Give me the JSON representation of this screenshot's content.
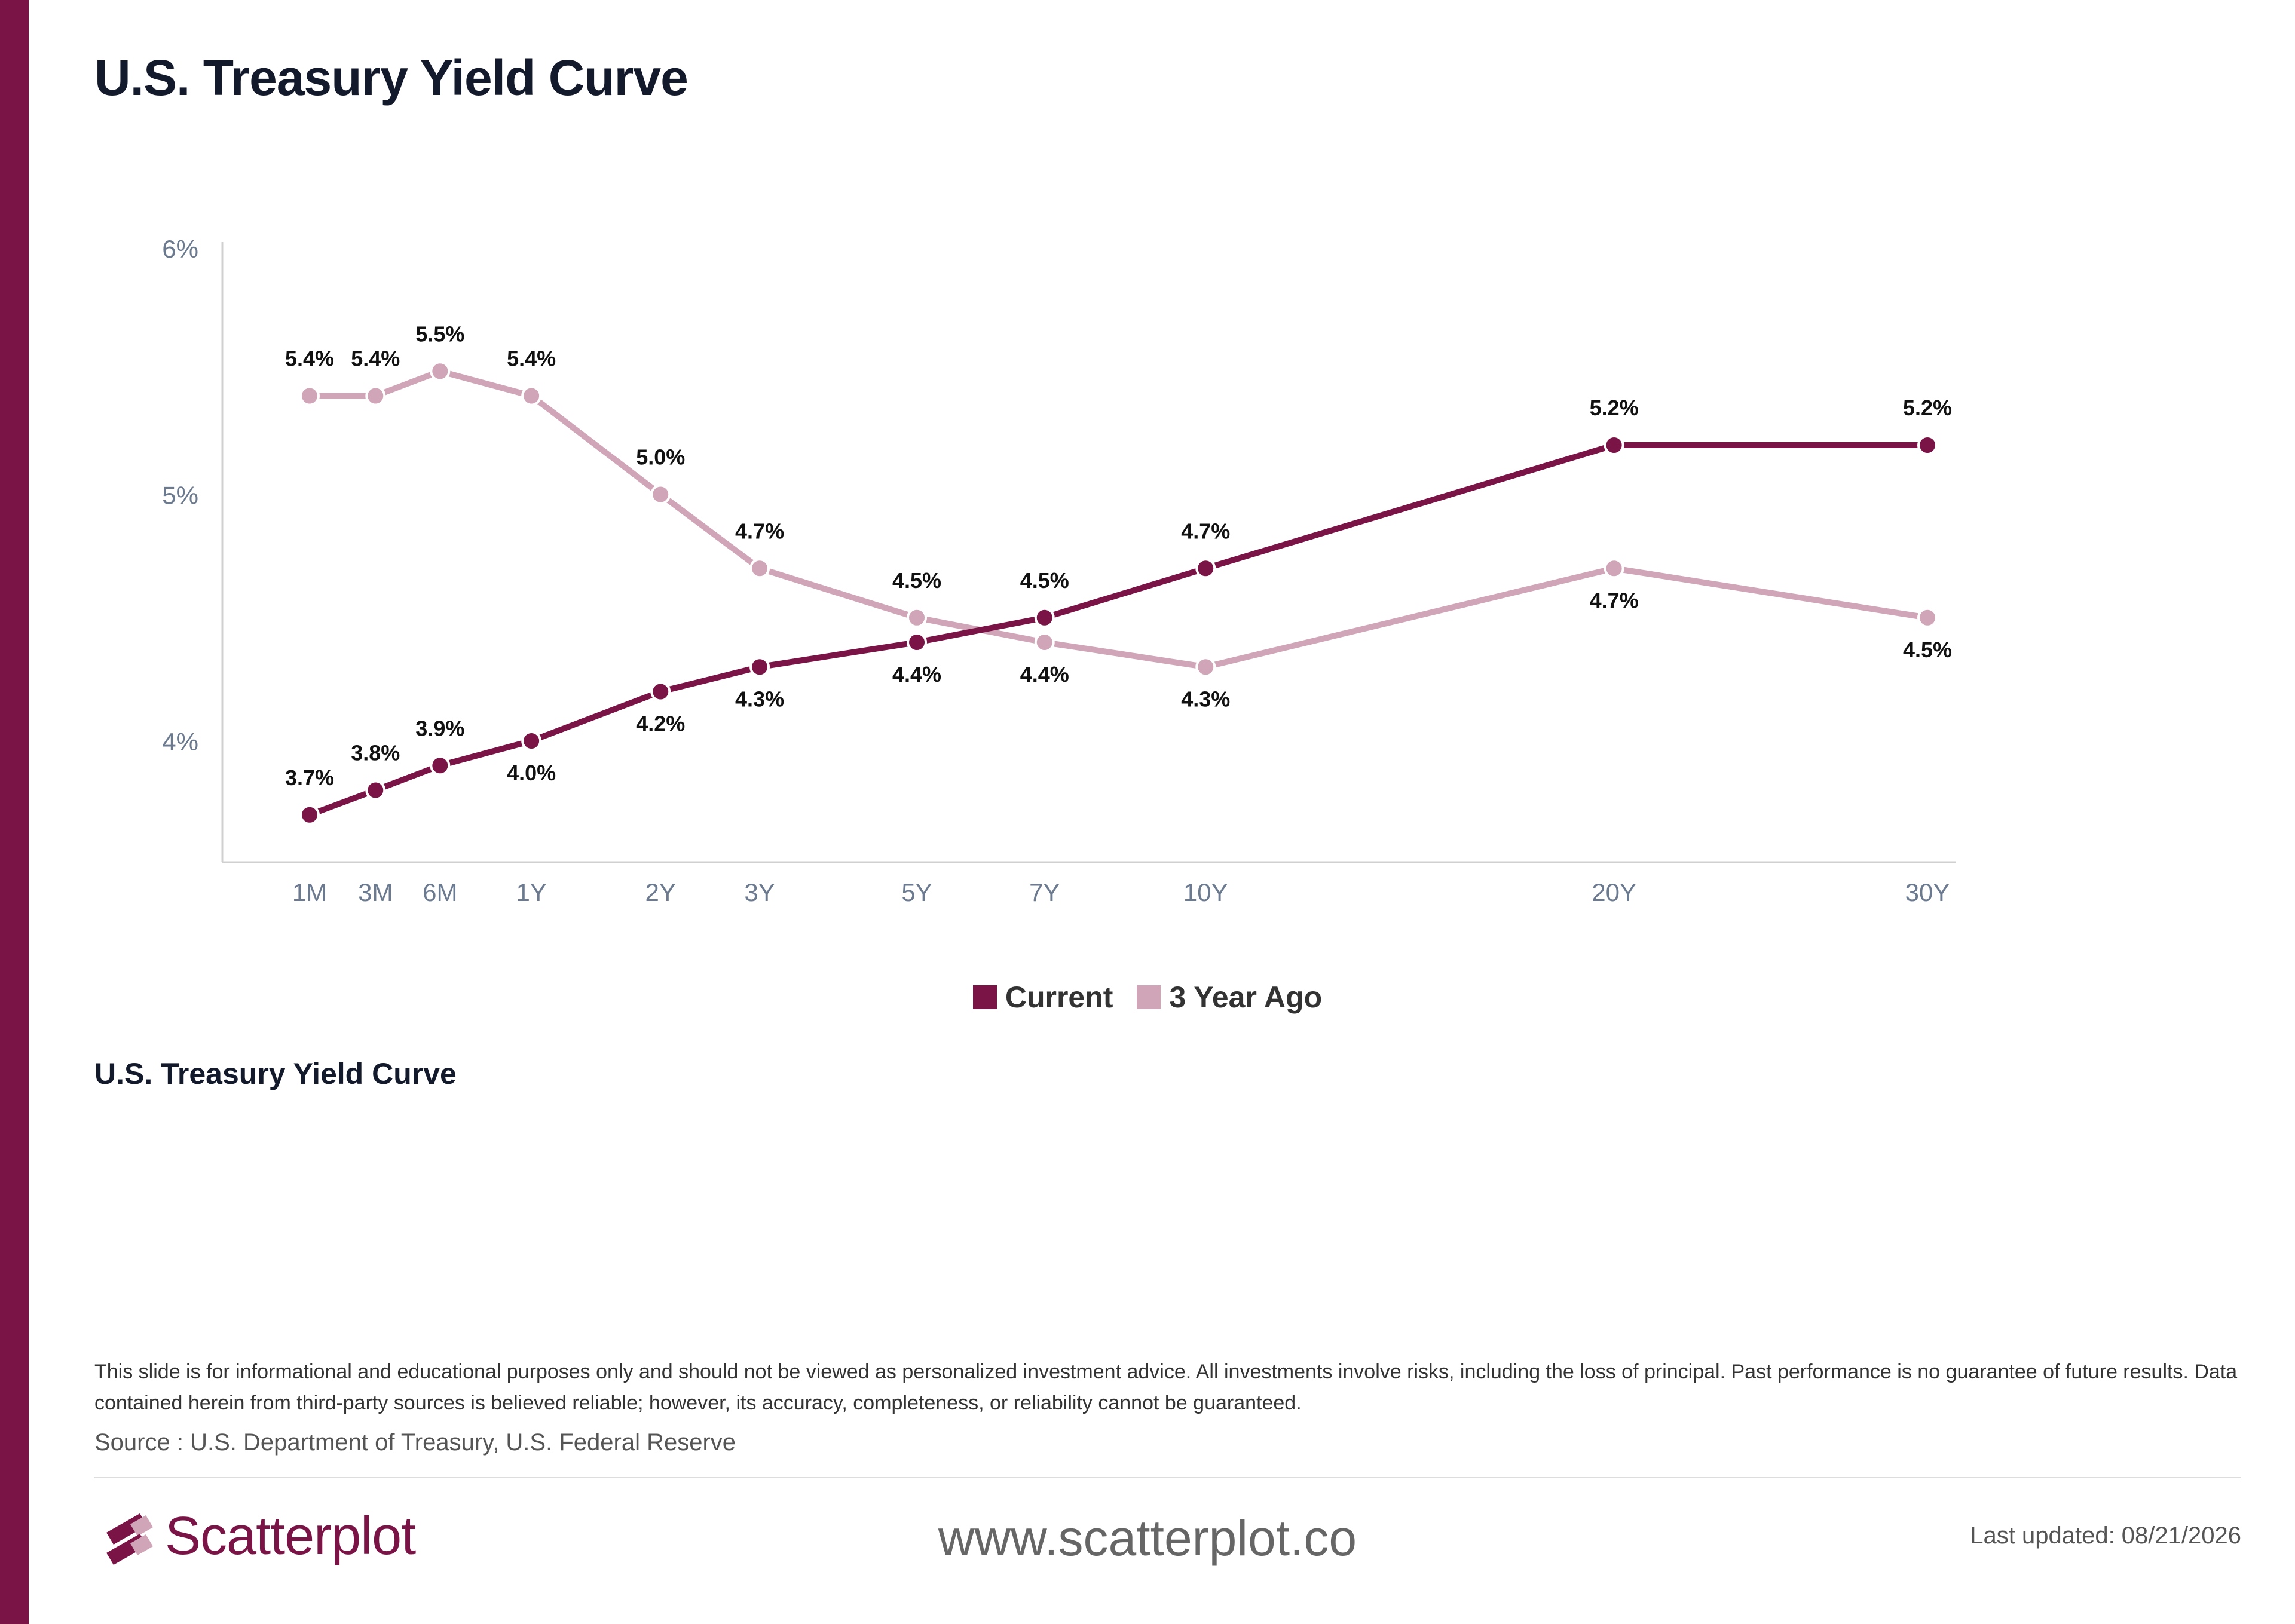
{
  "page": {
    "title": "U.S. Treasury Yield Curve",
    "subtitle": "U.S. Treasury Yield Curve",
    "disclaimer": "This slide is for informational and educational purposes only and should not be viewed as personalized investment advice. All investments involve risks, including the loss of principal. Past performance is no guarantee of future results. Data contained herein from third-party sources is believed reliable; however, its accuracy, completeness, or reliability cannot be guaranteed.",
    "source": "Source : U.S. Department of Treasury, U.S. Federal Reserve",
    "website": "www.scatterplot.co",
    "last_updated": "Last updated: 08/21/2026",
    "brand": "Scatterplot",
    "accent_color": "#7a1446",
    "logo_icon": "scatterplot-logo-icon"
  },
  "chart_data": {
    "type": "line",
    "title": "",
    "xlabel": "",
    "ylabel": "",
    "categories": [
      "1M",
      "3M",
      "6M",
      "1Y",
      "2Y",
      "3Y",
      "5Y",
      "7Y",
      "10Y",
      "20Y",
      "30Y"
    ],
    "maturity_years": [
      0.0833,
      0.25,
      0.5,
      1,
      2,
      3,
      5,
      7,
      10,
      20,
      30
    ],
    "ylim": [
      3.5,
      6.0
    ],
    "yticks": [
      4,
      5,
      6
    ],
    "ytick_labels": [
      "4%",
      "5%",
      "6%"
    ],
    "value_suffix": "%",
    "grid": false,
    "legend": "bottom-center",
    "series": [
      {
        "name": "Current",
        "color": "#7a1446",
        "values": [
          3.7,
          3.8,
          3.9,
          4.0,
          4.2,
          4.3,
          4.4,
          4.5,
          4.7,
          5.2,
          5.2
        ],
        "label_positions": [
          "above",
          "above",
          "above",
          "below",
          "below",
          "below",
          "below",
          "above",
          "above",
          "above",
          "above"
        ]
      },
      {
        "name": "3 Year Ago",
        "color": "#cfa5b7",
        "values": [
          5.4,
          5.4,
          5.5,
          5.4,
          5.0,
          4.7,
          4.5,
          4.4,
          4.3,
          4.7,
          4.5
        ],
        "label_positions": [
          "above",
          "above",
          "above",
          "above",
          "above",
          "above",
          "above",
          "below",
          "below",
          "below",
          "below"
        ]
      }
    ]
  }
}
